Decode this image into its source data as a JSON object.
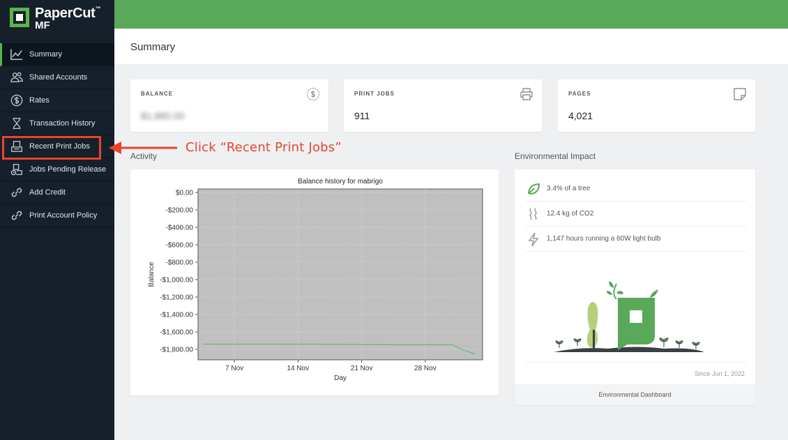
{
  "app": {
    "logo_line1": "PaperCut",
    "logo_line2": "MF",
    "logo_tm": "™"
  },
  "nav": [
    {
      "label": "Summary",
      "icon": "chart-line-icon"
    },
    {
      "label": "Shared Accounts",
      "icon": "users-icon"
    },
    {
      "label": "Rates",
      "icon": "dollar-circle-icon"
    },
    {
      "label": "Transaction History",
      "icon": "hourglass-icon"
    },
    {
      "label": "Recent Print Jobs",
      "icon": "print-tray-icon"
    },
    {
      "label": "Jobs Pending Release",
      "icon": "pending-release-icon"
    },
    {
      "label": "Add Credit",
      "icon": "link-icon"
    },
    {
      "label": "Print Account Policy",
      "icon": "link-icon"
    }
  ],
  "page": {
    "title": "Summary"
  },
  "cards": {
    "balance": {
      "label": "BALANCE",
      "value": "$1,880.00"
    },
    "print_jobs": {
      "label": "PRINT JOBS",
      "value": "911"
    },
    "pages": {
      "label": "PAGES",
      "value": "4,021"
    }
  },
  "activity": {
    "title": "Activity"
  },
  "environment": {
    "title": "Environmental Impact",
    "items": [
      {
        "text": "3.4% of a tree",
        "icon": "leaf-icon"
      },
      {
        "text": "12.4 kg of CO2",
        "icon": "smoke-icon"
      },
      {
        "text": "1,147 hours running a 60W light bulb",
        "icon": "lightning-icon"
      }
    ],
    "since": "Since Jun 1, 2022",
    "footer_link": "Environmental Dashboard"
  },
  "annotation": {
    "text": "Click “Recent Print Jobs”"
  },
  "chart_data": {
    "type": "line",
    "title": "Balance history for mabrigo",
    "xlabel": "Day",
    "ylabel": "Balance",
    "ylim": [
      -1920,
      40
    ],
    "y_ticks": [
      "$0.00",
      "-$200.00",
      "-$400.00",
      "-$600.00",
      "-$800.00",
      "-$1,000.00",
      "-$1,200.00",
      "-$1,400.00",
      "-$1,600.00",
      "-$1,800.00"
    ],
    "y_tick_values": [
      0,
      -200,
      -400,
      -600,
      -800,
      -1000,
      -1200,
      -1400,
      -1600,
      -1800
    ],
    "x_ticks": [
      "7 Nov",
      "14 Nov",
      "21 Nov",
      "28 Nov"
    ],
    "x_tick_days": [
      7,
      14,
      21,
      28
    ],
    "xlim": [
      3.0,
      34.3
    ],
    "series": [
      {
        "x": [
          3.5,
          16,
          21,
          26,
          30,
          31,
          32,
          33.5
        ],
        "values": [
          -1740,
          -1740,
          -1745,
          -1748,
          -1748,
          -1748,
          -1800,
          -1855
        ]
      }
    ],
    "plot_background": "#c0c0c0",
    "line_color": "#5cbf6f",
    "grid": true
  },
  "colors": {
    "accent": "#5bb44b",
    "topbar": "#5aa85a",
    "sidebar": "#16202b",
    "annotation": "#e8452c"
  }
}
